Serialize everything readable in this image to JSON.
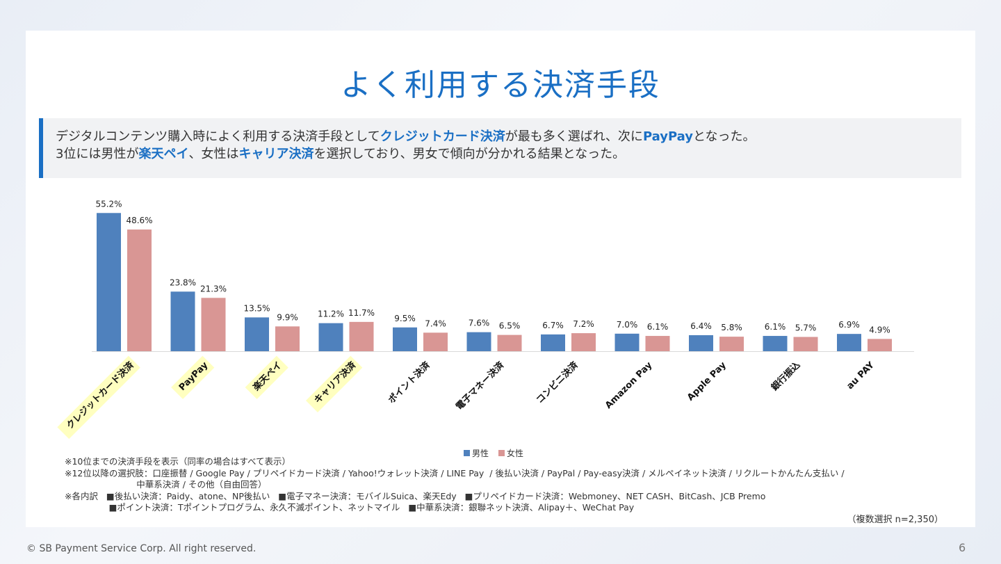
{
  "title": "よく利用する決済手段",
  "summary": {
    "line1_pre": "デジタルコンテンツ購入時によく利用する決済手段として",
    "line1_hl1": "クレジットカード決済",
    "line1_mid": "が最も多く選ばれ、次に",
    "line1_hl2": "PayPay",
    "line1_post": "となった。",
    "line2_pre": "3位には男性が",
    "line2_hl1": "楽天ペイ",
    "line2_mid": "、女性は",
    "line2_hl2": "キャリア決済",
    "line2_post": "を選択しており、男女で傾向が分かれる結果となった。"
  },
  "chart_data": {
    "type": "bar",
    "categories": [
      "クレジットカード決済",
      "PayPay",
      "楽天ペイ",
      "キャリア決済",
      "ポイント決済",
      "電子マネー決済",
      "コンビニ決済",
      "Amazon Pay",
      "Apple Pay",
      "銀行振込",
      "au PAY"
    ],
    "highlighted_categories": [
      "クレジットカード決済",
      "PayPay",
      "楽天ペイ",
      "キャリア決済"
    ],
    "series": [
      {
        "name": "男性",
        "color": "#4f81bd",
        "values": [
          55.2,
          23.8,
          13.5,
          11.2,
          9.5,
          7.6,
          6.7,
          7.0,
          6.4,
          6.1,
          6.9
        ],
        "labels": [
          "55.2%",
          "23.8%",
          "13.5%",
          "11.2%",
          "9.5%",
          "7.6%",
          "6.7%",
          "7.0%",
          "6.4%",
          "6.1%",
          "6.9%"
        ]
      },
      {
        "name": "女性",
        "color": "#d99694",
        "values": [
          48.6,
          21.3,
          9.9,
          11.7,
          7.4,
          6.5,
          7.2,
          6.1,
          5.8,
          5.7,
          4.9
        ],
        "labels": [
          "48.6%",
          "21.3%",
          "9.9%",
          "11.7%",
          "7.4%",
          "6.5%",
          "7.2%",
          "6.1%",
          "5.8%",
          "5.7%",
          "4.9%"
        ]
      }
    ],
    "ylim": [
      0,
      60
    ],
    "grid": false,
    "legend_position": "bottom-center",
    "highlight_color": "#ffffc0"
  },
  "legend": {
    "male": "男性",
    "female": "女性"
  },
  "notes": {
    "n1": "※10位までの決済手段を表示（同率の場合はすべて表示）",
    "n2": "※12位以降の選択肢：口座振替 / Google Pay / プリペイドカード決済 / Yahoo!ウォレット決済 / LINE Pay  / 後払い決済 / PayPal / Pay-easy決済 / メルペイネット決済 / リクルートかんたん支払い /",
    "n3": "                          中華系決済 / その他（自由回答）",
    "n4": "※各内訳   ■後払い決済：Paidy、atone、NP後払い   ■電子マネー決済：モバイルSuica、楽天Edy   ■プリペイドカード決済：Webmoney、NET CASH、BitCash、JCB Premo",
    "n5": "                ■ポイント決済：Tポイントプログラム、永久不滅ポイント、ネットマイル   ■中華系決済：銀聯ネット決済、Alipay＋、WeChat Pay"
  },
  "sample_note": "（複数選択 n=2,350）",
  "footer": "© SB Payment Service Corp. All right reserved.",
  "page_number": "6"
}
